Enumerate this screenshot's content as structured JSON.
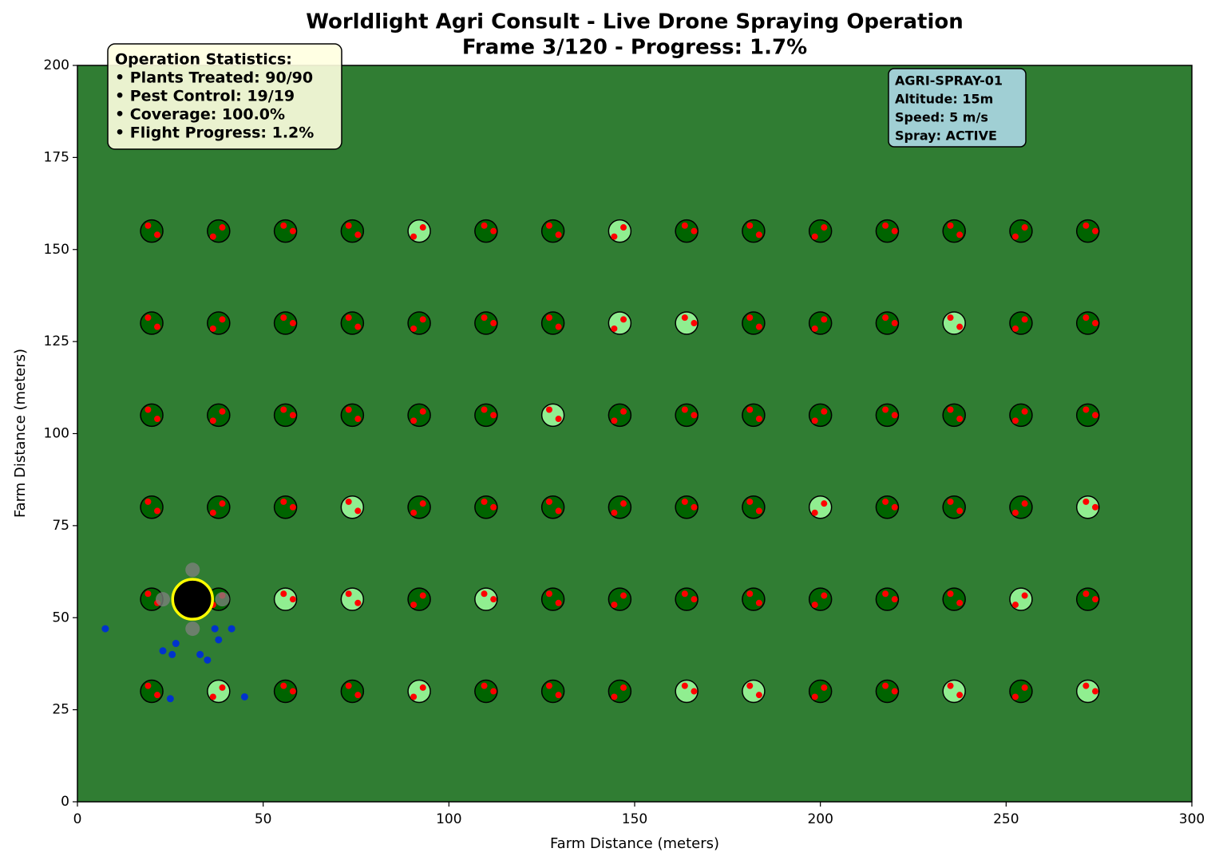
{
  "chart_data": {
    "type": "scatter",
    "title": "Worldlight Agri Consult - Live Drone Spraying Operation",
    "subtitle": "Frame 3/120 - Progress: 1.7%",
    "xlabel": "Farm Distance (meters)",
    "ylabel": "Farm Distance (meters)",
    "xlim": [
      0,
      300
    ],
    "ylim": [
      0,
      200
    ],
    "xticks": [
      0,
      50,
      100,
      150,
      200,
      250,
      300
    ],
    "yticks": [
      0,
      25,
      50,
      75,
      100,
      125,
      150,
      175,
      200
    ],
    "background": "#307d33",
    "stats_box": [
      "Operation Statistics:",
      "• Plants Treated: 90/90",
      "• Pest Control: 19/19",
      "• Coverage: 100.0%",
      "• Flight Progress: 1.2%"
    ],
    "drone_box": [
      "AGRI-SPRAY-01",
      "Altitude: 15m",
      "Speed: 5 m/s",
      "Spray: ACTIVE"
    ],
    "series": [
      {
        "color": "#006400",
        "edgecolor": "#000000",
        "x": [
          20,
          38,
          56,
          74,
          110,
          128,
          164,
          182,
          200,
          218,
          236,
          254,
          272,
          20,
          38,
          56,
          74,
          92,
          110,
          128,
          182,
          200,
          218,
          254,
          272,
          20,
          38,
          56,
          74,
          92,
          110,
          146,
          164,
          182,
          200,
          218,
          236,
          254,
          272,
          20,
          38,
          56,
          92,
          110,
          128,
          146,
          164,
          182,
          218,
          236,
          254,
          20,
          38,
          92,
          128,
          146,
          164,
          182,
          200,
          218,
          236,
          272,
          20,
          56,
          74,
          110,
          128,
          146,
          200,
          218,
          254
        ],
        "y": [
          155,
          155,
          155,
          155,
          155,
          155,
          155,
          155,
          155,
          155,
          155,
          155,
          155,
          130,
          130,
          130,
          130,
          130,
          130,
          130,
          130,
          130,
          130,
          130,
          130,
          105,
          105,
          105,
          105,
          105,
          105,
          105,
          105,
          105,
          105,
          105,
          105,
          105,
          105,
          80,
          80,
          80,
          80,
          80,
          80,
          80,
          80,
          80,
          80,
          80,
          80,
          55,
          55,
          55,
          55,
          55,
          55,
          55,
          55,
          55,
          55,
          55,
          30,
          30,
          30,
          30,
          30,
          30,
          30,
          30,
          30
        ]
      },
      {
        "color": "#90ee90",
        "edgecolor": "#000000",
        "x": [
          92,
          146,
          146,
          164,
          236,
          128,
          74,
          200,
          272,
          56,
          74,
          110,
          254,
          38,
          92,
          164,
          182,
          236,
          272
        ],
        "y": [
          155,
          155,
          130,
          130,
          130,
          105,
          80,
          80,
          80,
          55,
          55,
          55,
          55,
          30,
          30,
          30,
          30,
          30,
          30
        ]
      },
      {
        "color": "#ff0000",
        "x": [
          19,
          21.5,
          39,
          36.5,
          58,
          55.5,
          73,
          75.5,
          93,
          90.5,
          112,
          109.5,
          127,
          129.5,
          147,
          144.5,
          166,
          163.5,
          181,
          183.5,
          201,
          198.5,
          220,
          217.5,
          235,
          237.5,
          255,
          252.5,
          274,
          271.5,
          19,
          21.5,
          39,
          36.5,
          58,
          55.5,
          73,
          75.5,
          93,
          90.5,
          112,
          109.5,
          127,
          129.5,
          147,
          144.5,
          166,
          163.5,
          181,
          183.5,
          201,
          198.5,
          220,
          217.5,
          235,
          237.5,
          255,
          252.5,
          274,
          271.5,
          19,
          21.5,
          39,
          36.5,
          58,
          55.5,
          73,
          75.5,
          93,
          90.5,
          112,
          109.5,
          127,
          129.5,
          147,
          144.5,
          166,
          163.5,
          181,
          183.5,
          201,
          198.5,
          220,
          217.5,
          235,
          237.5,
          255,
          252.5,
          274,
          271.5,
          19,
          21.5,
          39,
          36.5,
          58,
          55.5,
          73,
          75.5,
          93,
          90.5,
          112,
          109.5,
          127,
          129.5,
          147,
          144.5,
          166,
          163.5,
          181,
          183.5,
          201,
          198.5,
          220,
          217.5,
          235,
          237.5,
          255,
          252.5,
          274,
          271.5,
          19,
          21.5,
          39,
          36.5,
          58,
          55.5,
          73,
          75.5,
          93,
          90.5,
          112,
          109.5,
          127,
          129.5,
          147,
          144.5,
          166,
          163.5,
          181,
          183.5,
          201,
          198.5,
          220,
          217.5,
          235,
          237.5,
          255,
          252.5,
          274,
          271.5,
          19,
          21.5,
          39,
          36.5,
          58,
          55.5,
          73,
          75.5,
          93,
          90.5,
          112,
          109.5,
          127,
          129.5,
          147,
          144.5,
          166,
          163.5,
          181,
          183.5,
          201,
          198.5,
          220,
          217.5,
          235,
          237.5,
          255,
          252.5,
          274,
          271.5
        ],
        "y": [
          156.5,
          154,
          156,
          153.5,
          155,
          156.5,
          156.5,
          154,
          156,
          153.5,
          155,
          156.5,
          156.5,
          154,
          156,
          153.5,
          155,
          156.5,
          156.5,
          154,
          156,
          153.5,
          155,
          156.5,
          156.5,
          154,
          156,
          153.5,
          155,
          156.5,
          131.5,
          129,
          131,
          128.5,
          130,
          131.5,
          131.5,
          129,
          131,
          128.5,
          130,
          131.5,
          131.5,
          129,
          131,
          128.5,
          130,
          131.5,
          131.5,
          129,
          131,
          128.5,
          130,
          131.5,
          131.5,
          129,
          131,
          128.5,
          130,
          131.5,
          106.5,
          104,
          106,
          103.5,
          105,
          106.5,
          106.5,
          104,
          106,
          103.5,
          105,
          106.5,
          106.5,
          104,
          106,
          103.5,
          105,
          106.5,
          106.5,
          104,
          106,
          103.5,
          105,
          106.5,
          106.5,
          104,
          106,
          103.5,
          105,
          106.5,
          81.5,
          79,
          81,
          78.5,
          80,
          81.5,
          81.5,
          79,
          81,
          78.5,
          80,
          81.5,
          81.5,
          79,
          81,
          78.5,
          80,
          81.5,
          81.5,
          79,
          81,
          78.5,
          80,
          81.5,
          81.5,
          79,
          81,
          78.5,
          80,
          81.5,
          56.5,
          54,
          56,
          53.5,
          55,
          56.5,
          56.5,
          54,
          56,
          53.5,
          55,
          56.5,
          56.5,
          54,
          56,
          53.5,
          55,
          56.5,
          56.5,
          54,
          56,
          53.5,
          55,
          56.5,
          56.5,
          54,
          56,
          53.5,
          55,
          56.5,
          31.5,
          29,
          31,
          28.5,
          30,
          31.5,
          31.5,
          29,
          31,
          28.5,
          30,
          31.5,
          31.5,
          29,
          31,
          28.5,
          30,
          31.5,
          31.5,
          29,
          31,
          28.5,
          30,
          31.5,
          31.5,
          29,
          31,
          28.5,
          30,
          31.5
        ]
      },
      {
        "color": "#0033cc",
        "x": [
          7.5,
          23,
          25.5,
          26.5,
          25,
          33,
          35,
          37,
          38,
          41.5,
          45
        ],
        "y": [
          47,
          41,
          40,
          43,
          28,
          40,
          38.5,
          47,
          44,
          47,
          28.5
        ]
      },
      {
        "color": "#808080",
        "x": [
          31,
          31,
          23,
          39
        ],
        "y": [
          63,
          47,
          55,
          55
        ]
      },
      {
        "color": "#000000",
        "edgecolor": "#ffff00",
        "x": [
          31
        ],
        "y": [
          55
        ]
      }
    ]
  }
}
